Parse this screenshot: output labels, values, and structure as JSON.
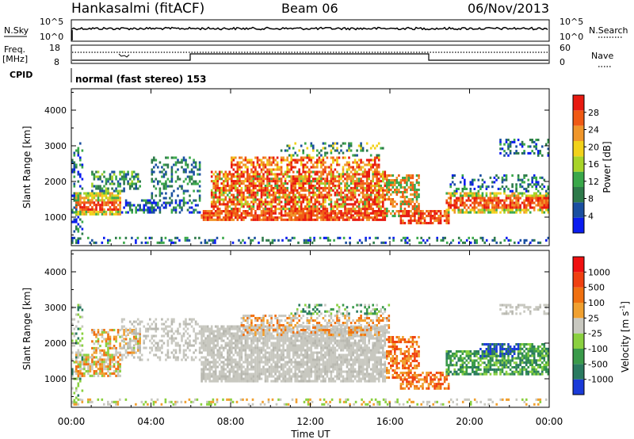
{
  "header": {
    "station": "Hankasalmi (fitACF)",
    "beam": "Beam 06",
    "date": "06/Nov/2013"
  },
  "summary": {
    "nsky_label": "N.Sky",
    "nsearch_label": "N.Search",
    "freq_label_1": "Freq.",
    "freq_label_2": "[MHz]",
    "nave_label": "Nave",
    "cpid_label": "CPID",
    "left_ticks_top": [
      "10^5",
      "10^0"
    ],
    "right_ticks_top": [
      "10^5",
      "10^0"
    ],
    "left_ticks_freq": [
      "18",
      "8"
    ],
    "right_ticks_nave": [
      "60",
      "0"
    ],
    "cpid_text": "normal (fast stereo) 153"
  },
  "chart_data": [
    {
      "type": "heatmap",
      "quantity": "Power",
      "colorbar_label": "Power [dB]",
      "colorbar_ticks": [
        "28",
        "24",
        "20",
        "16",
        "12",
        "8",
        "4"
      ],
      "colors": [
        "#0a1cf0",
        "#1a4fa0",
        "#2e7a4a",
        "#3aa84a",
        "#a8d428",
        "#f2d21a",
        "#f0962a",
        "#f05a14",
        "#e81a10"
      ],
      "ylabel": "Slant Range [km]",
      "ylim": [
        200,
        4600
      ],
      "y_ticks": [
        1000,
        2000,
        3000,
        4000
      ],
      "x_ticks": [
        "00:00",
        "04:00",
        "08:00",
        "12:00",
        "16:00",
        "20:00",
        "00:00"
      ],
      "xlim_hours": [
        0,
        24
      ]
    },
    {
      "type": "heatmap",
      "quantity": "Velocity",
      "colorbar_label": "Velocity [m s^-1]",
      "colorbar_ticks": [
        "1000",
        "500",
        "100",
        "25",
        "-25",
        "-100",
        "-500",
        "-1000"
      ],
      "colors": [
        "#1a3ad8",
        "#2a7a60",
        "#3a9a4a",
        "#8ad040",
        "#c8c8c0",
        "#f0a030",
        "#f07010",
        "#f04010",
        "#f01010"
      ],
      "ylabel": "Slant Range [km]",
      "ylim": [
        200,
        4600
      ],
      "y_ticks": [
        1000,
        2000,
        3000,
        4000
      ],
      "x_ticks": [
        "00:00",
        "04:00",
        "08:00",
        "12:00",
        "16:00",
        "20:00",
        "00:00"
      ],
      "xlabel": "Time UT",
      "xlim_hours": [
        0,
        24
      ]
    }
  ]
}
